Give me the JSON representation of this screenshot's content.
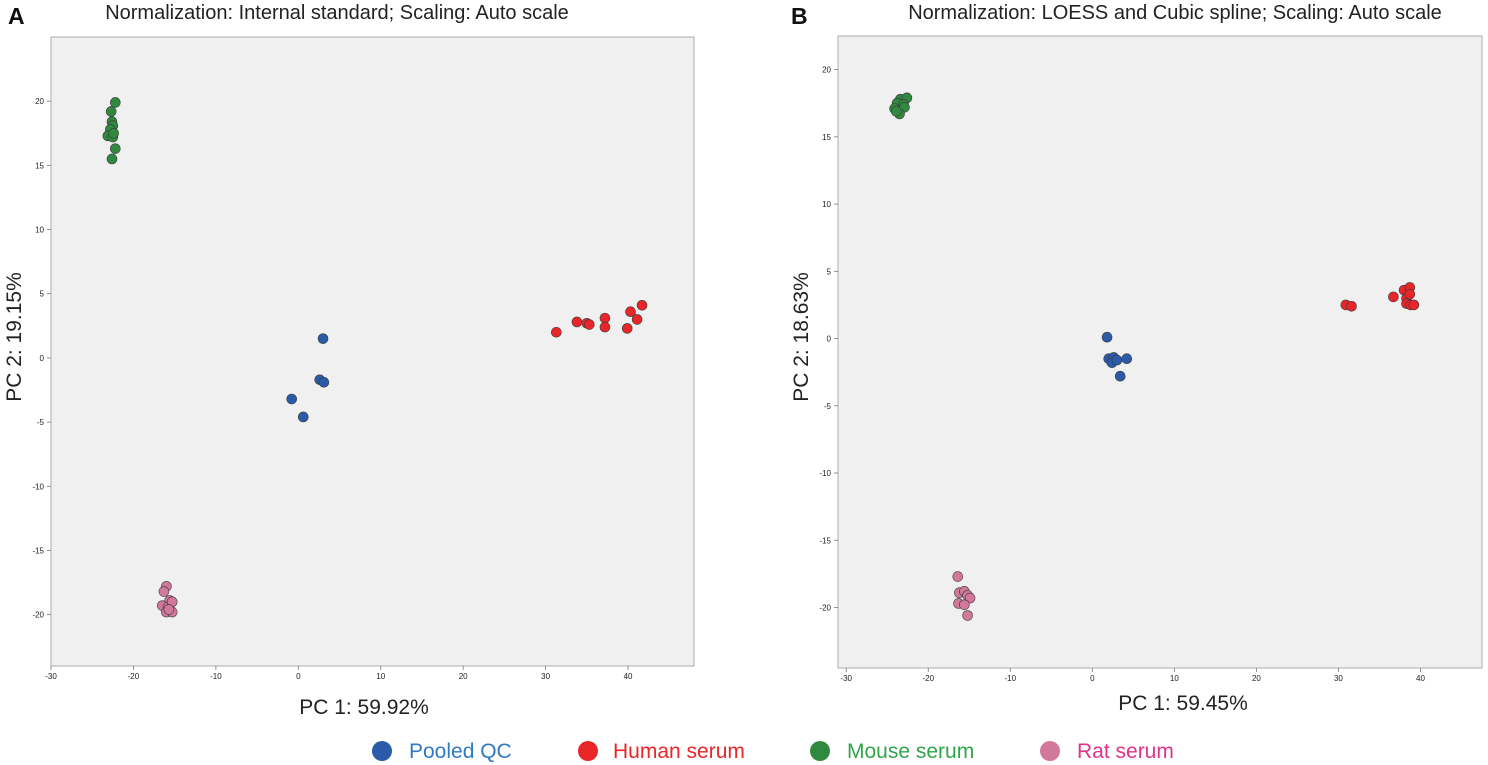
{
  "chart_data": [
    {
      "panel": "A",
      "type": "scatter",
      "title": "Normalization: Internal standard; Scaling: Auto scale",
      "xlabel": "PC 1: 59.92%",
      "ylabel": "PC 2: 19.15%",
      "xlim": [
        -30,
        48
      ],
      "ylim": [
        -24,
        25
      ],
      "xticks": [
        -30,
        -20,
        -10,
        0,
        10,
        20,
        30,
        40
      ],
      "yticks": [
        -20,
        -15,
        -10,
        -5,
        0,
        5,
        10,
        15,
        20
      ],
      "grid": false,
      "series": [
        {
          "name": "Pooled QC",
          "points": [
            [
              3.0,
              1.5
            ],
            [
              2.6,
              -1.7
            ],
            [
              3.1,
              -1.9
            ],
            [
              -0.8,
              -3.2
            ],
            [
              0.6,
              -4.6
            ]
          ]
        },
        {
          "name": "Human serum",
          "points": [
            [
              31.3,
              2.0
            ],
            [
              33.8,
              2.8
            ],
            [
              35.0,
              2.7
            ],
            [
              35.3,
              2.6
            ],
            [
              37.2,
              3.1
            ],
            [
              37.2,
              2.4
            ],
            [
              39.9,
              2.3
            ],
            [
              40.3,
              3.6
            ],
            [
              41.1,
              3.0
            ],
            [
              41.7,
              4.1
            ]
          ]
        },
        {
          "name": "Mouse serum",
          "points": [
            [
              -22.2,
              19.9
            ],
            [
              -22.7,
              19.2
            ],
            [
              -22.6,
              18.4
            ],
            [
              -22.5,
              18.1
            ],
            [
              -22.8,
              17.8
            ],
            [
              -23.1,
              17.3
            ],
            [
              -22.5,
              17.2
            ],
            [
              -22.4,
              17.5
            ],
            [
              -22.2,
              16.3
            ],
            [
              -22.6,
              15.5
            ]
          ]
        },
        {
          "name": "Rat serum",
          "points": [
            [
              -16.0,
              -17.8
            ],
            [
              -16.3,
              -18.2
            ],
            [
              -15.6,
              -18.9
            ],
            [
              -16.5,
              -19.3
            ],
            [
              -15.8,
              -19.4
            ],
            [
              -15.3,
              -19.0
            ],
            [
              -16.0,
              -19.8
            ],
            [
              -15.3,
              -19.8
            ],
            [
              -15.7,
              -19.6
            ]
          ]
        }
      ]
    },
    {
      "panel": "B",
      "type": "scatter",
      "title": "Normalization: LOESS and Cubic spline; Scaling: Auto scale",
      "xlabel": "PC 1: 59.45%",
      "ylabel": "PC 2: 18.63%",
      "xlim": [
        -31,
        47.5
      ],
      "ylim": [
        -24.5,
        22.5
      ],
      "xticks": [
        -30,
        -20,
        -10,
        0,
        10,
        20,
        30,
        40
      ],
      "yticks": [
        -20,
        -15,
        -10,
        -5,
        0,
        5,
        10,
        15,
        20
      ],
      "grid": false,
      "series": [
        {
          "name": "Pooled QC",
          "points": [
            [
              1.8,
              0.1
            ],
            [
              2.0,
              -1.5
            ],
            [
              2.6,
              -1.4
            ],
            [
              2.4,
              -1.8
            ],
            [
              3.0,
              -1.6
            ],
            [
              4.2,
              -1.5
            ],
            [
              3.4,
              -2.8
            ]
          ]
        },
        {
          "name": "Human serum",
          "points": [
            [
              30.9,
              2.5
            ],
            [
              31.6,
              2.4
            ],
            [
              36.7,
              3.1
            ],
            [
              38.0,
              3.6
            ],
            [
              38.7,
              3.8
            ],
            [
              38.3,
              3.0
            ],
            [
              38.7,
              3.3
            ],
            [
              38.3,
              2.6
            ],
            [
              38.8,
              2.5
            ],
            [
              39.2,
              2.5
            ]
          ]
        },
        {
          "name": "Mouse serum",
          "points": [
            [
              -23.4,
              17.8
            ],
            [
              -22.6,
              17.9
            ],
            [
              -23.8,
              17.5
            ],
            [
              -23.0,
              17.4
            ],
            [
              -24.1,
              17.1
            ],
            [
              -22.9,
              17.2
            ],
            [
              -23.5,
              16.7
            ],
            [
              -23.9,
              16.9
            ]
          ]
        },
        {
          "name": "Rat serum",
          "points": [
            [
              -16.4,
              -17.7
            ],
            [
              -16.2,
              -18.9
            ],
            [
              -15.6,
              -18.8
            ],
            [
              -15.2,
              -19.1
            ],
            [
              -14.9,
              -19.3
            ],
            [
              -16.3,
              -19.7
            ],
            [
              -15.6,
              -19.8
            ],
            [
              -15.2,
              -20.6
            ]
          ]
        }
      ]
    }
  ],
  "colors": {
    "Pooled QC": "#2a5aa8",
    "Human serum": "#e8262a",
    "Mouse serum": "#2f8a3f",
    "Rat serum": "#d2789b",
    "plot_bg": "#f0f0f0"
  },
  "legend": {
    "items": [
      {
        "name": "Pooled QC",
        "label": "Pooled QC",
        "marker_color": "#2a5aa8",
        "text_color": "#2f7ac3"
      },
      {
        "name": "Human serum",
        "label": "Human serum",
        "marker_color": "#e8262a",
        "text_color": "#e8262a"
      },
      {
        "name": "Mouse serum",
        "label": "Mouse serum",
        "marker_color": "#2f8a3f",
        "text_color": "#2fa64a"
      },
      {
        "name": "Rat serum",
        "label": "Rat serum",
        "marker_color": "#d2789b",
        "text_color": "#e0348a"
      }
    ]
  }
}
